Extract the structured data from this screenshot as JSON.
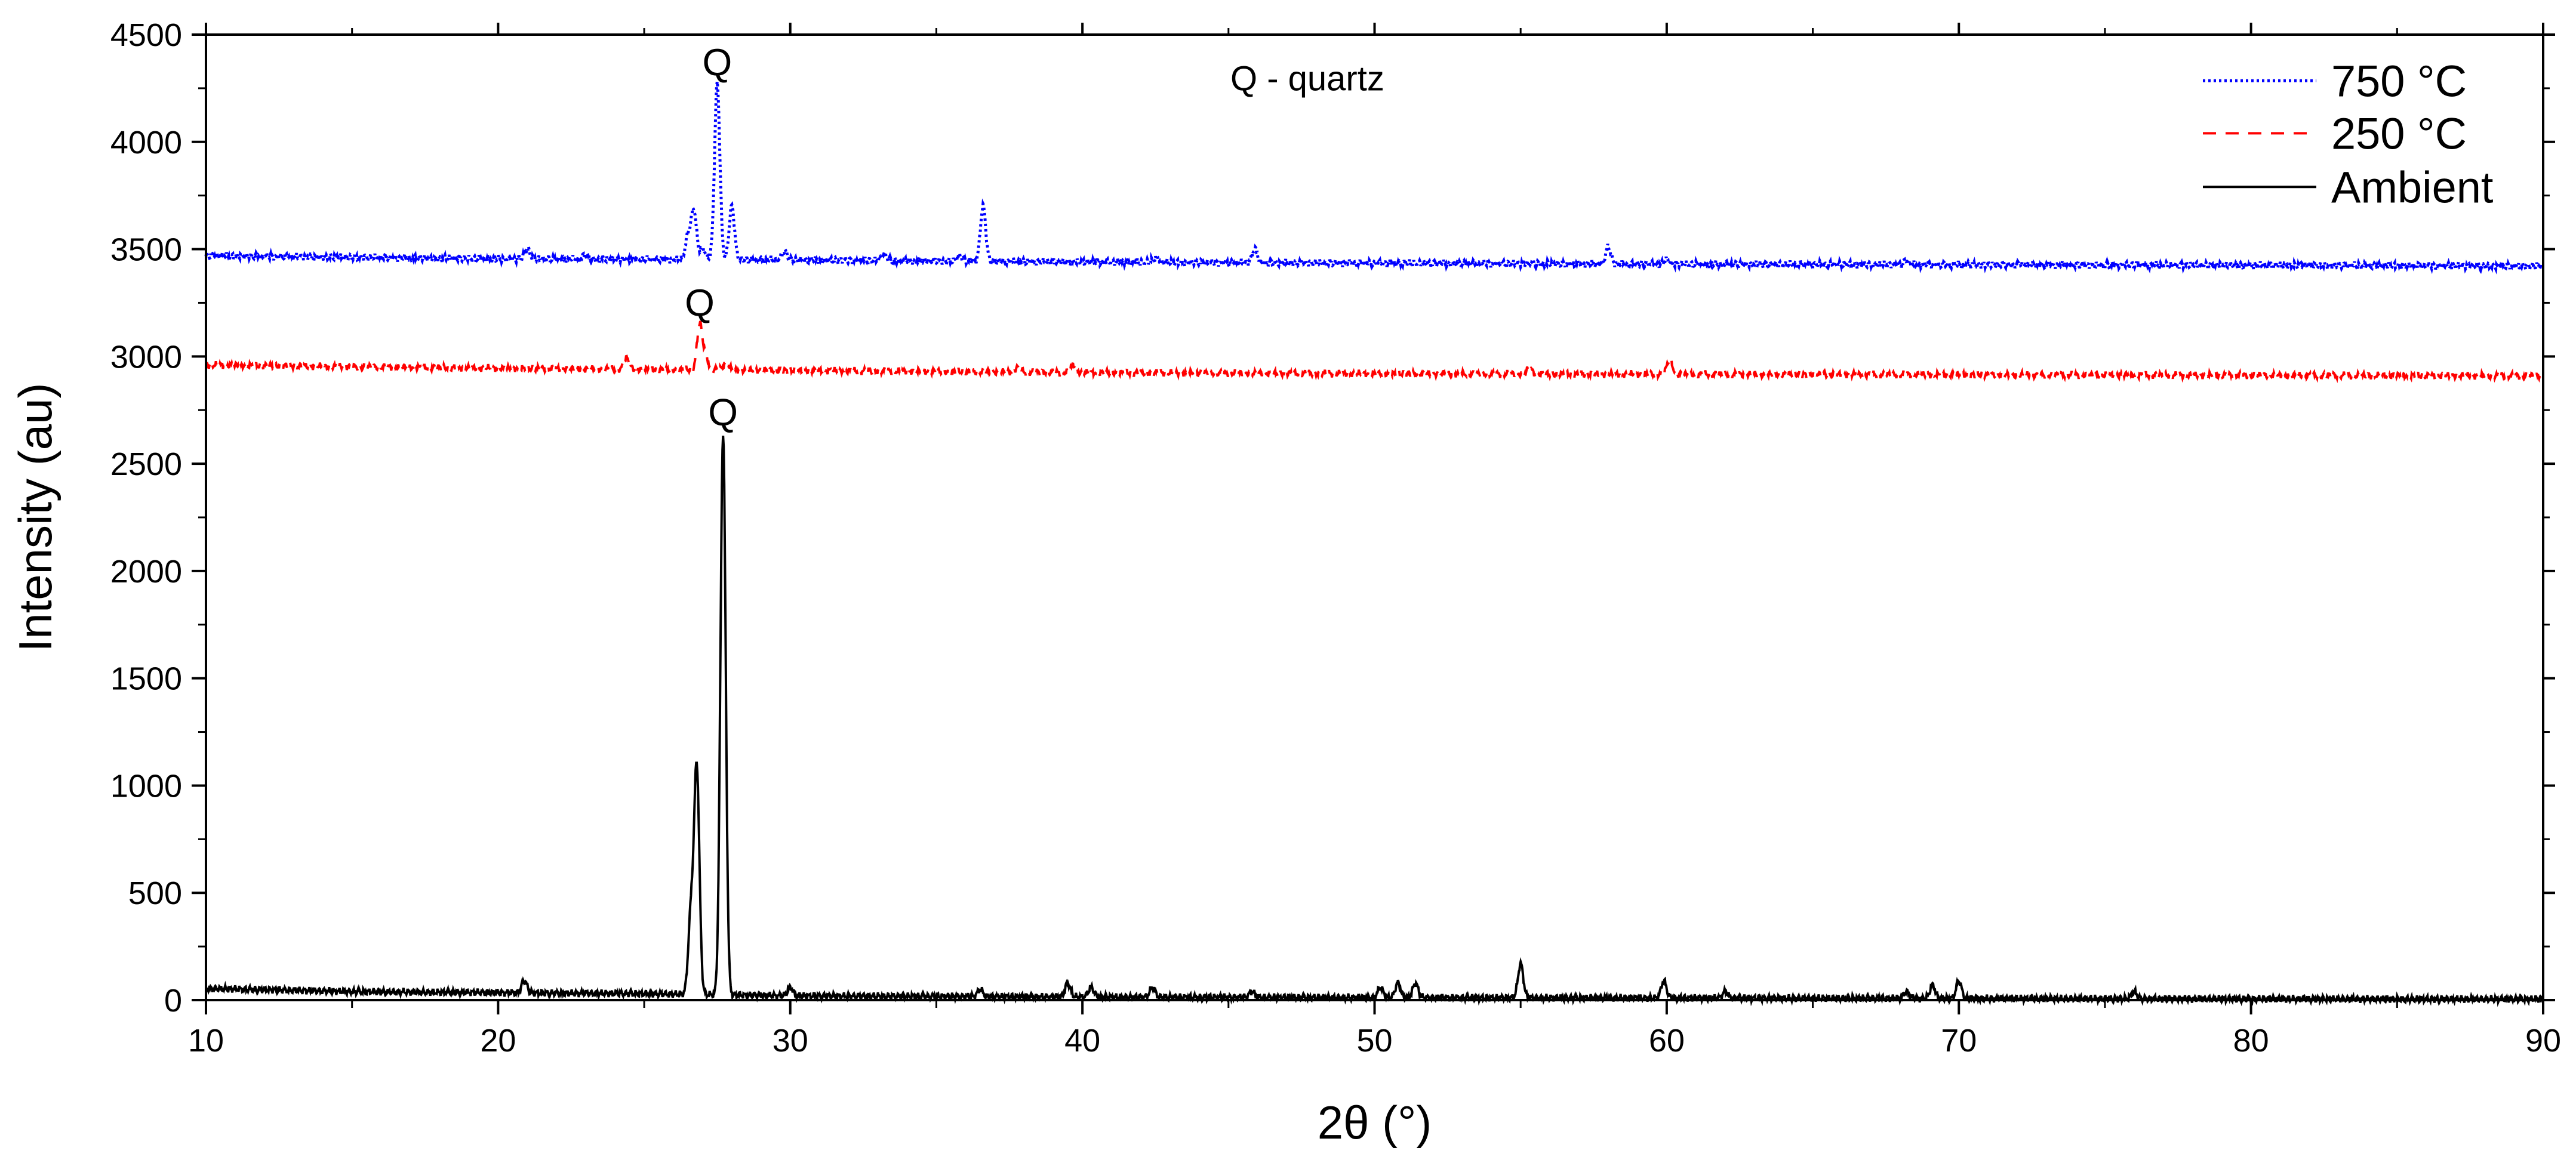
{
  "chart_data": {
    "type": "line",
    "title": "",
    "xlabel": "2θ (°)",
    "ylabel": "Intensity (au)",
    "xlim": [
      10,
      90
    ],
    "ylim": [
      0,
      4500
    ],
    "xticks": [
      10,
      20,
      30,
      40,
      50,
      60,
      70,
      80,
      90
    ],
    "yticks": [
      0,
      500,
      1000,
      1500,
      2000,
      2500,
      3000,
      3500,
      4000,
      4500
    ],
    "grid": false,
    "legend_position": "top-right",
    "annotations": {
      "note": "Q - quartz",
      "peak_label": "Q",
      "peaks": [
        {
          "series": "750 °C",
          "x": 27.5,
          "y": 4270
        },
        {
          "series": "250 °C",
          "x": 26.9,
          "y": 3150
        },
        {
          "series": "Ambient",
          "x": 27.7,
          "y": 2640
        }
      ]
    },
    "series": [
      {
        "name": "750 °C",
        "color": "#0000ff",
        "style": "dotted",
        "baseline": [
          [
            10,
            3470
          ],
          [
            20,
            3455
          ],
          [
            30,
            3450
          ],
          [
            40,
            3440
          ],
          [
            50,
            3435
          ],
          [
            60,
            3430
          ],
          [
            70,
            3428
          ],
          [
            80,
            3425
          ],
          [
            90,
            3422
          ]
        ],
        "peaks": [
          [
            21.0,
            3500
          ],
          [
            23.0,
            3475
          ],
          [
            26.5,
            3560
          ],
          [
            26.7,
            3680
          ],
          [
            27.0,
            3500
          ],
          [
            27.5,
            4270
          ],
          [
            28.0,
            3700
          ],
          [
            29.8,
            3490
          ],
          [
            33.2,
            3480
          ],
          [
            35.8,
            3470
          ],
          [
            36.6,
            3700
          ],
          [
            42.5,
            3460
          ],
          [
            45.9,
            3500
          ],
          [
            58.0,
            3510
          ],
          [
            60.0,
            3450
          ],
          [
            68.2,
            3445
          ]
        ]
      },
      {
        "name": "250 °C",
        "color": "#ff0000",
        "style": "dashed",
        "baseline": [
          [
            10,
            2960
          ],
          [
            20,
            2945
          ],
          [
            30,
            2935
          ],
          [
            40,
            2925
          ],
          [
            50,
            2920
          ],
          [
            60,
            2917
          ],
          [
            70,
            2915
          ],
          [
            80,
            2912
          ],
          [
            90,
            2910
          ]
        ],
        "peaks": [
          [
            24.4,
            2990
          ],
          [
            26.9,
            3150
          ],
          [
            27.1,
            3000
          ],
          [
            27.8,
            2970
          ],
          [
            37.8,
            2950
          ],
          [
            39.7,
            2960
          ],
          [
            55.3,
            2945
          ],
          [
            60.1,
            2990
          ]
        ]
      },
      {
        "name": "Ambient",
        "color": "#000000",
        "style": "solid",
        "baseline": [
          [
            10,
            55
          ],
          [
            15,
            40
          ],
          [
            20,
            35
          ],
          [
            25,
            30
          ],
          [
            30,
            20
          ],
          [
            40,
            15
          ],
          [
            50,
            12
          ],
          [
            60,
            10
          ],
          [
            70,
            8
          ],
          [
            80,
            6
          ],
          [
            90,
            5
          ]
        ],
        "peaks": [
          [
            20.9,
            90
          ],
          [
            26.6,
            400
          ],
          [
            26.8,
            1080
          ],
          [
            27.7,
            2640
          ],
          [
            30.0,
            60
          ],
          [
            36.5,
            50
          ],
          [
            39.5,
            80
          ],
          [
            40.3,
            60
          ],
          [
            42.4,
            60
          ],
          [
            45.8,
            40
          ],
          [
            50.2,
            60
          ],
          [
            50.8,
            80
          ],
          [
            51.4,
            80
          ],
          [
            55.0,
            170
          ],
          [
            59.9,
            90
          ],
          [
            62.0,
            40
          ],
          [
            68.2,
            40
          ],
          [
            69.1,
            70
          ],
          [
            70.0,
            90
          ],
          [
            76.0,
            40
          ]
        ]
      }
    ]
  }
}
